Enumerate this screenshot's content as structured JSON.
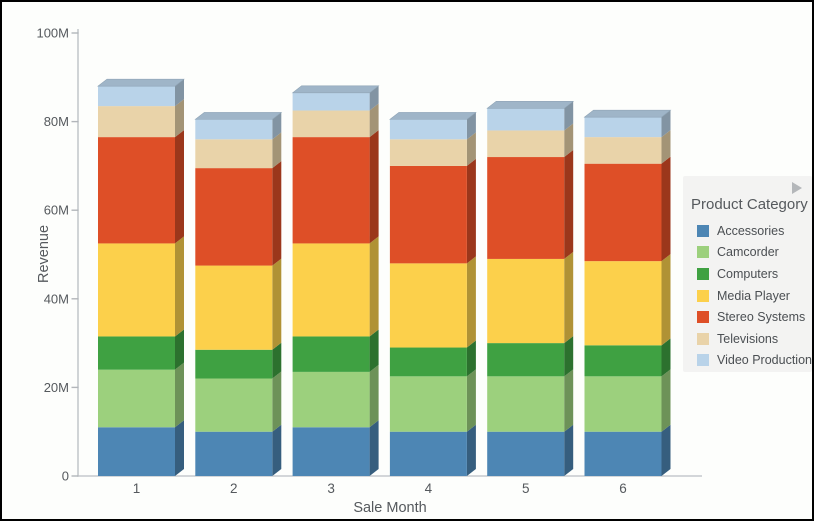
{
  "window": {
    "background": "#fdfefc",
    "border_color": "#000000"
  },
  "chart_data": {
    "type": "bar",
    "stacked": true,
    "effect_3d": true,
    "title": "",
    "xlabel": "Sale Month",
    "ylabel": "Revenue",
    "categories": [
      "1",
      "2",
      "3",
      "4",
      "5",
      "6"
    ],
    "series": [
      {
        "name": "Accessories",
        "color": "#4d86b4",
        "values": [
          11,
          10,
          11,
          10,
          10,
          10
        ]
      },
      {
        "name": "Camcorder",
        "color": "#9cd07d",
        "values": [
          13,
          12,
          12.5,
          12.5,
          12.5,
          12.5
        ]
      },
      {
        "name": "Computers",
        "color": "#3fa142",
        "values": [
          7.5,
          6.5,
          8,
          6.5,
          7.5,
          7
        ]
      },
      {
        "name": "Media Player",
        "color": "#fcd04b",
        "values": [
          21,
          19,
          21,
          19,
          19,
          19
        ]
      },
      {
        "name": "Stereo Systems",
        "color": "#de4f27",
        "values": [
          24,
          22,
          24,
          22,
          23,
          22
        ]
      },
      {
        "name": "Televisions",
        "color": "#e9d3a9",
        "values": [
          7,
          6.5,
          6,
          6,
          6,
          6
        ]
      },
      {
        "name": "Video Production",
        "color": "#b9d3e9",
        "values": [
          4.5,
          4.5,
          4,
          4.5,
          5,
          4.5
        ]
      }
    ],
    "ylim": [
      0,
      100
    ],
    "yticks": [
      0,
      20,
      40,
      60,
      80,
      100
    ],
    "ytick_labels": [
      "0",
      "20M",
      "40M",
      "60M",
      "80M",
      "100M"
    ],
    "grid": false,
    "legend_position": "right"
  },
  "legend": {
    "title": "Product Category",
    "expand_icon": "right-arrow"
  },
  "style": {
    "axis_line_color": "#c5c9cd",
    "tick_color": "#b2b6ba",
    "label_color": "#55595d"
  }
}
